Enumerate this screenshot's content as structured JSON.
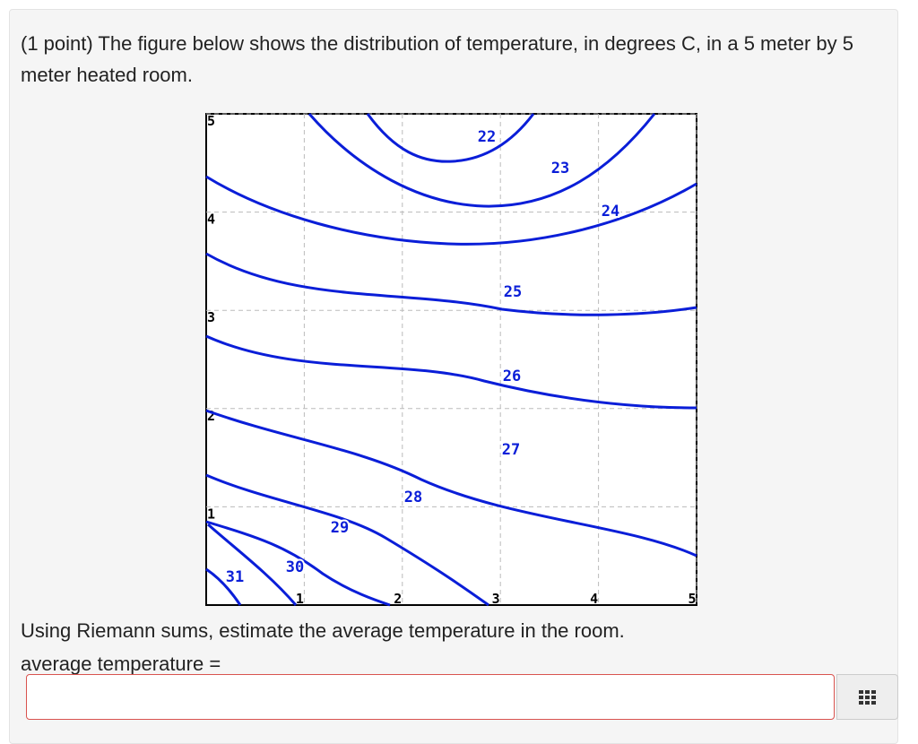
{
  "question": {
    "prompt": "(1 point) The figure below shows the distribution of temperature, in degrees C, in a 5 meter by 5 meter heated room.",
    "instruction": "Using Riemann sums, estimate the average temperature in the room.",
    "answer_label": "average temperature ="
  },
  "figure": {
    "xlim": [
      0,
      5
    ],
    "ylim": [
      0,
      5
    ],
    "xticks": [
      1,
      2,
      3,
      4,
      5
    ],
    "yticks": [
      1,
      2,
      3,
      4,
      5
    ],
    "contours": [
      22,
      23,
      24,
      25,
      26,
      27,
      28,
      29,
      30,
      31
    ],
    "color": "#0a1ed8"
  }
}
